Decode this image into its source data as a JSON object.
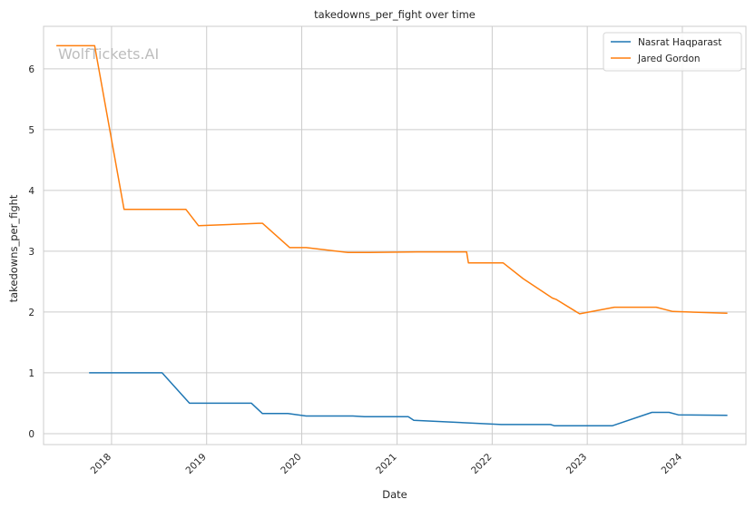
{
  "chart_data": {
    "type": "line",
    "title": "takedowns_per_fight over time",
    "xlabel": "Date",
    "ylabel": "takedowns_per_fight",
    "watermark": "WolfTickets.AI",
    "xlim": [
      "2017-04-15",
      "2024-09-01"
    ],
    "ylim": [
      -0.18,
      6.7
    ],
    "xticks": [
      "2018",
      "2019",
      "2020",
      "2021",
      "2022",
      "2023",
      "2024"
    ],
    "yticks": [
      0,
      1,
      2,
      3,
      4,
      5,
      6
    ],
    "grid": true,
    "legend_position": "top-right",
    "series": [
      {
        "name": "Nasrat Haqparast",
        "color": "#1f77b4",
        "points": [
          [
            "2017-10-07",
            1.0
          ],
          [
            "2018-07-14",
            1.0
          ],
          [
            "2018-10-27",
            0.5
          ],
          [
            "2019-06-22",
            0.5
          ],
          [
            "2019-08-03",
            0.33
          ],
          [
            "2019-11-09",
            0.33
          ],
          [
            "2020-01-18",
            0.29
          ],
          [
            "2020-07-15",
            0.29
          ],
          [
            "2020-08-29",
            0.28
          ],
          [
            "2021-02-13",
            0.28
          ],
          [
            "2021-03-06",
            0.22
          ],
          [
            "2022-02-05",
            0.15
          ],
          [
            "2022-08-13",
            0.15
          ],
          [
            "2022-08-27",
            0.13
          ],
          [
            "2023-04-08",
            0.13
          ],
          [
            "2023-09-06",
            0.35
          ],
          [
            "2023-11-11",
            0.35
          ],
          [
            "2023-12-16",
            0.31
          ],
          [
            "2024-06-22",
            0.3
          ]
        ]
      },
      {
        "name": "Jared Gordon",
        "color": "#ff7f0e",
        "points": [
          [
            "2017-06-03",
            6.38
          ],
          [
            "2017-10-28",
            6.38
          ],
          [
            "2018-02-18",
            3.69
          ],
          [
            "2018-10-13",
            3.69
          ],
          [
            "2018-12-01",
            3.42
          ],
          [
            "2019-07-20",
            3.46
          ],
          [
            "2019-08-03",
            3.46
          ],
          [
            "2019-11-16",
            3.06
          ],
          [
            "2020-01-18",
            3.06
          ],
          [
            "2020-06-27",
            2.98
          ],
          [
            "2020-09-19",
            2.98
          ],
          [
            "2021-03-20",
            2.99
          ],
          [
            "2021-09-25",
            2.99
          ],
          [
            "2021-10-02",
            2.81
          ],
          [
            "2022-02-12",
            2.81
          ],
          [
            "2022-04-30",
            2.55
          ],
          [
            "2022-08-20",
            2.23
          ],
          [
            "2022-09-03",
            2.21
          ],
          [
            "2022-12-03",
            1.97
          ],
          [
            "2023-04-15",
            2.08
          ],
          [
            "2023-09-23",
            2.08
          ],
          [
            "2023-11-25",
            2.01
          ],
          [
            "2024-06-22",
            1.98
          ]
        ]
      }
    ]
  }
}
